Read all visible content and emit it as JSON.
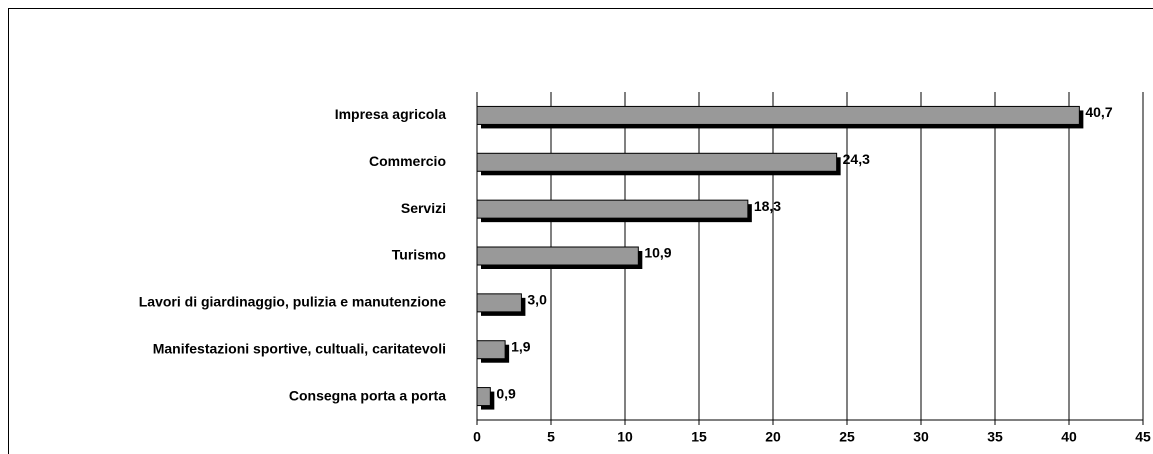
{
  "chart_data": {
    "type": "bar",
    "orientation": "horizontal",
    "categories": [
      "Impresa agricola",
      "Commercio",
      "Servizi",
      "Turismo",
      "Lavori di giardinaggio, pulizia e manutenzione",
      "Manifestazioni sportive, cultuali, caritatevoli",
      "Consegna porta a porta"
    ],
    "values": [
      40.7,
      24.3,
      18.3,
      10.9,
      3.0,
      1.9,
      0.9
    ],
    "value_labels": [
      "40,7",
      "24,3",
      "18,3",
      "10,9",
      "3,0",
      "1,9",
      "0,9"
    ],
    "color": "#999999",
    "xlim": [
      0,
      45
    ],
    "xticks": [
      0,
      5,
      10,
      15,
      20,
      25,
      30,
      35,
      40,
      45
    ],
    "grid": true
  }
}
